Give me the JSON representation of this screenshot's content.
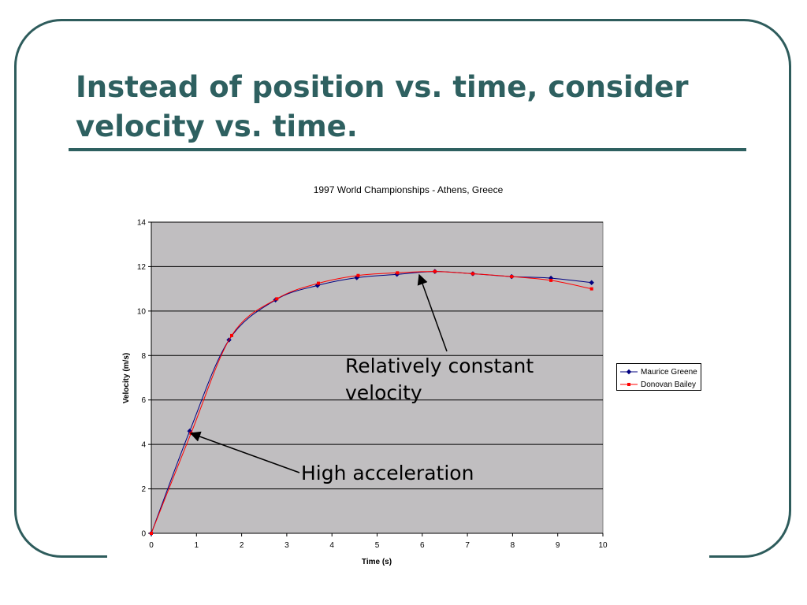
{
  "slide": {
    "title": "Instead of position vs. time, consider velocity vs. time."
  },
  "annotations": {
    "constant_text": "Relatively constant velocity",
    "accel_text": "High acceleration"
  },
  "colors": {
    "frame": "#2e5c5c",
    "title": "#2e6060",
    "plot_bg": "#c0bec0",
    "series_greene": "#000080",
    "series_bailey": "#ff0000"
  },
  "chart_data": {
    "type": "line",
    "title": "1997 World Championships - Athens, Greece",
    "xlabel": "Time (s)",
    "ylabel": "Velocity (m/s)",
    "xlim": [
      0,
      10
    ],
    "ylim": [
      0,
      14
    ],
    "x_ticks": [
      "0",
      "1",
      "2",
      "3",
      "4",
      "5",
      "6",
      "7",
      "8",
      "9",
      "10"
    ],
    "y_ticks": [
      "0",
      "2",
      "4",
      "6",
      "8",
      "10",
      "12",
      "14"
    ],
    "grid": true,
    "legend": "right",
    "series": [
      {
        "name": "Maurice Greene",
        "color": "#000080",
        "marker": "diamond",
        "x": [
          0,
          0.85,
          1.72,
          2.75,
          3.68,
          4.55,
          5.44,
          6.28,
          7.12,
          7.98,
          8.85,
          9.75
        ],
        "y": [
          0,
          4.6,
          8.7,
          10.5,
          11.15,
          11.5,
          11.65,
          11.78,
          11.68,
          11.55,
          11.48,
          11.28
        ]
      },
      {
        "name": "Donovan Bailey",
        "color": "#ff0000",
        "marker": "square",
        "x": [
          0,
          0.88,
          1.78,
          2.78,
          3.7,
          4.58,
          5.45,
          6.28,
          7.12,
          7.98,
          8.85,
          9.75
        ],
        "y": [
          0,
          4.5,
          8.9,
          10.55,
          11.25,
          11.6,
          11.72,
          11.78,
          11.68,
          11.55,
          11.38,
          11.0
        ]
      }
    ]
  }
}
